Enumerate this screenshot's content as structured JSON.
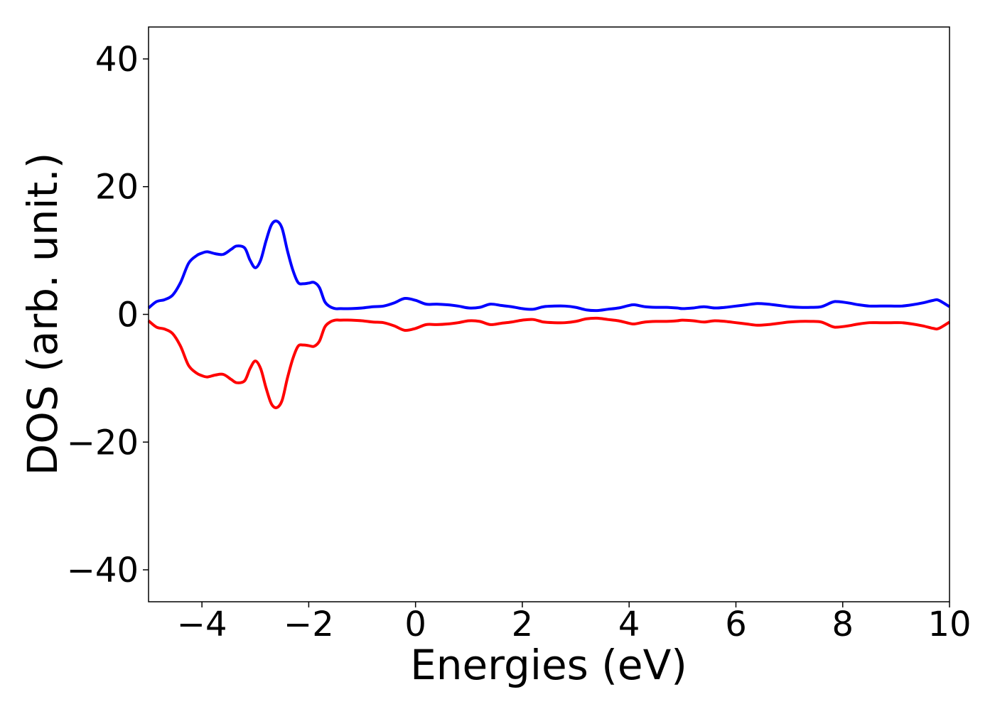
{
  "chart_data": {
    "type": "line",
    "title": "",
    "xlabel": "Energies (eV)",
    "ylabel": "DOS (arb. unit.)",
    "xlim": [
      -5,
      10
    ],
    "ylim": [
      -45,
      45
    ],
    "grid": false,
    "x_ticks": [
      -4,
      -2,
      0,
      2,
      4,
      6,
      8,
      10
    ],
    "x_tick_labels": [
      "−4",
      "−2",
      "0",
      "2",
      "4",
      "6",
      "8",
      "10"
    ],
    "y_ticks": [
      -40,
      -20,
      0,
      20,
      40
    ],
    "y_tick_labels": [
      "−40",
      "−20",
      "0",
      "20",
      "40"
    ],
    "series": [
      {
        "color": "#0000ff",
        "x": [
          -5,
          -4.85,
          -4.7,
          -4.55,
          -4.4,
          -4.25,
          -4.1,
          -4.0,
          -3.9,
          -3.75,
          -3.6,
          -3.45,
          -3.35,
          -3.2,
          -3.1,
          -3.0,
          -2.9,
          -2.8,
          -2.7,
          -2.6,
          -2.5,
          -2.4,
          -2.3,
          -2.2,
          -2.1,
          -2.0,
          -1.9,
          -1.8,
          -1.7,
          -1.6,
          -1.5,
          -1.4,
          -1.2,
          -1.0,
          -0.8,
          -0.6,
          -0.4,
          -0.2,
          0.0,
          0.2,
          0.4,
          0.6,
          0.8,
          1.0,
          1.2,
          1.4,
          1.6,
          1.8,
          2.0,
          2.2,
          2.4,
          2.6,
          2.8,
          3.0,
          3.2,
          3.4,
          3.6,
          3.8,
          4.0,
          4.1,
          4.3,
          4.5,
          4.7,
          4.9,
          5.0,
          5.2,
          5.4,
          5.6,
          5.8,
          6.0,
          6.2,
          6.4,
          6.6,
          6.8,
          7.0,
          7.2,
          7.4,
          7.6,
          7.8,
          7.9,
          8.1,
          8.3,
          8.5,
          8.7,
          8.9,
          9.1,
          9.3,
          9.5,
          9.7,
          9.8,
          10.0
        ],
        "y": [
          1.0,
          2.0,
          2.3,
          3.0,
          5.0,
          8.0,
          9.2,
          9.6,
          9.8,
          9.5,
          9.4,
          10.2,
          10.7,
          10.4,
          8.5,
          7.3,
          8.5,
          11.5,
          14.0,
          14.6,
          13.5,
          10.0,
          7.0,
          5.0,
          4.8,
          4.9,
          5.0,
          4.2,
          2.0,
          1.2,
          0.9,
          0.9,
          0.9,
          1.0,
          1.2,
          1.3,
          1.8,
          2.5,
          2.2,
          1.6,
          1.6,
          1.5,
          1.3,
          1.0,
          1.1,
          1.6,
          1.4,
          1.2,
          0.9,
          0.8,
          1.2,
          1.3,
          1.3,
          1.1,
          0.7,
          0.6,
          0.8,
          1.0,
          1.4,
          1.5,
          1.2,
          1.1,
          1.1,
          1.0,
          0.9,
          1.0,
          1.2,
          1.0,
          1.1,
          1.3,
          1.5,
          1.7,
          1.6,
          1.4,
          1.2,
          1.1,
          1.1,
          1.2,
          1.9,
          2.0,
          1.8,
          1.5,
          1.3,
          1.3,
          1.3,
          1.3,
          1.5,
          1.8,
          2.2,
          2.2,
          1.2
        ]
      },
      {
        "color": "#ff0000",
        "x": [
          -5,
          -4.85,
          -4.7,
          -4.55,
          -4.4,
          -4.25,
          -4.1,
          -4.0,
          -3.9,
          -3.75,
          -3.6,
          -3.45,
          -3.35,
          -3.2,
          -3.1,
          -3.0,
          -2.9,
          -2.8,
          -2.7,
          -2.6,
          -2.5,
          -2.4,
          -2.3,
          -2.2,
          -2.1,
          -2.0,
          -1.9,
          -1.8,
          -1.7,
          -1.6,
          -1.5,
          -1.4,
          -1.2,
          -1.0,
          -0.8,
          -0.6,
          -0.4,
          -0.2,
          0.0,
          0.2,
          0.4,
          0.6,
          0.8,
          1.0,
          1.2,
          1.4,
          1.6,
          1.8,
          2.0,
          2.2,
          2.4,
          2.6,
          2.8,
          3.0,
          3.2,
          3.4,
          3.6,
          3.8,
          4.0,
          4.1,
          4.3,
          4.5,
          4.7,
          4.9,
          5.0,
          5.2,
          5.4,
          5.6,
          5.8,
          6.0,
          6.2,
          6.4,
          6.6,
          6.8,
          7.0,
          7.2,
          7.4,
          7.6,
          7.8,
          7.9,
          8.1,
          8.3,
          8.5,
          8.7,
          8.9,
          9.1,
          9.3,
          9.5,
          9.7,
          9.8,
          10.0
        ],
        "y": [
          -1.0,
          -2.0,
          -2.3,
          -3.0,
          -5.0,
          -8.0,
          -9.2,
          -9.6,
          -9.8,
          -9.5,
          -9.4,
          -10.2,
          -10.7,
          -10.4,
          -8.5,
          -7.3,
          -8.5,
          -11.5,
          -14.0,
          -14.6,
          -13.5,
          -10.0,
          -7.0,
          -5.0,
          -4.8,
          -4.9,
          -5.0,
          -4.2,
          -2.0,
          -1.2,
          -0.9,
          -0.9,
          -0.9,
          -1.0,
          -1.2,
          -1.3,
          -1.8,
          -2.5,
          -2.2,
          -1.6,
          -1.6,
          -1.5,
          -1.3,
          -1.0,
          -1.1,
          -1.6,
          -1.4,
          -1.2,
          -0.9,
          -0.8,
          -1.2,
          -1.3,
          -1.3,
          -1.1,
          -0.7,
          -0.6,
          -0.8,
          -1.0,
          -1.4,
          -1.5,
          -1.2,
          -1.1,
          -1.1,
          -1.0,
          -0.9,
          -1.0,
          -1.2,
          -1.0,
          -1.1,
          -1.3,
          -1.5,
          -1.7,
          -1.6,
          -1.4,
          -1.2,
          -1.1,
          -1.1,
          -1.2,
          -1.9,
          -2.0,
          -1.8,
          -1.5,
          -1.3,
          -1.3,
          -1.3,
          -1.3,
          -1.5,
          -1.8,
          -2.2,
          -2.2,
          -1.2
        ]
      }
    ]
  }
}
